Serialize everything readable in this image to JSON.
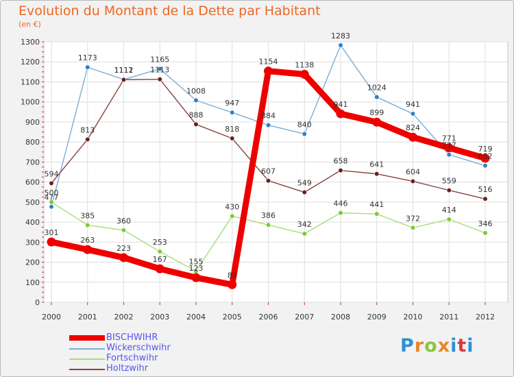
{
  "header": {
    "title": "Evolution du Montant de la Dette par Habitant",
    "subtitle": "(en €)"
  },
  "logo": {
    "text": "Proxiti"
  },
  "colors": {
    "title": "#ee6622",
    "background": "#f2f2f2",
    "plot_background": "#ffffff",
    "grid": "#dddddd",
    "axis_text": "#333333",
    "tick_red": "#cc2222"
  },
  "chart_data": {
    "type": "line",
    "title": "Evolution du Montant de la Dette par Habitant",
    "subtitle": "(en €)",
    "xlabel": "",
    "ylabel": "",
    "ylim": [
      0,
      1300
    ],
    "yticks": [
      0,
      100,
      200,
      300,
      400,
      500,
      600,
      700,
      800,
      900,
      1000,
      1100,
      1200,
      1300
    ],
    "grid": true,
    "legend_position": "bottom-left",
    "x": [
      "2000",
      "2001",
      "2002",
      "2003",
      "2004",
      "2005",
      "2006",
      "2007",
      "2008",
      "2009",
      "2010",
      "2011",
      "2012"
    ],
    "series": [
      {
        "name": "BISCHWIHR",
        "color": "#ee0000",
        "marker_color": "#ee0000",
        "label_color": "#333333",
        "legend_color": "#5555ee",
        "style": "thick",
        "values": [
          301,
          263,
          223,
          167,
          123,
          88,
          1154,
          1138,
          941,
          899,
          824,
          771,
          719
        ]
      },
      {
        "name": "Wickerschwihr",
        "color": "#7aaed6",
        "marker_color": "#2f7fc8",
        "label_color": "#333333",
        "legend_color": "#5555ee",
        "style": "thin",
        "values": [
          477,
          1173,
          1112,
          1165,
          1008,
          947,
          884,
          840,
          1283,
          1024,
          941,
          737,
          682
        ]
      },
      {
        "name": "Fortschwihr",
        "color": "#a8dc78",
        "marker_color": "#77cc33",
        "label_color": "#333333",
        "legend_color": "#5555ee",
        "style": "thin",
        "values": [
          500,
          385,
          360,
          253,
          155,
          430,
          386,
          342,
          446,
          441,
          372,
          414,
          346
        ]
      },
      {
        "name": "Holtzwihr",
        "color": "#8a4040",
        "marker_color": "#6a2020",
        "label_color": "#333333",
        "legend_color": "#5555ee",
        "style": "thin",
        "values": [
          594,
          813,
          1111,
          1113,
          888,
          818,
          607,
          549,
          658,
          641,
          604,
          559,
          516
        ]
      }
    ]
  }
}
